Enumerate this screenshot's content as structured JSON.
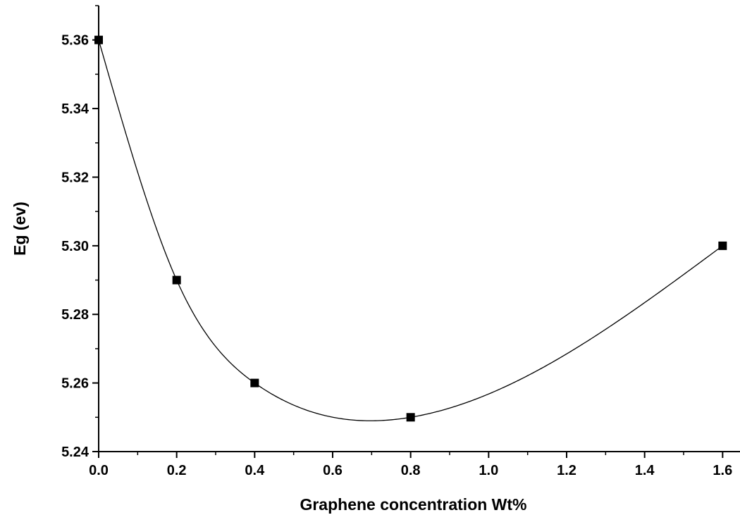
{
  "chart_data": {
    "type": "scatter",
    "title": "",
    "xlabel": "Graphene concentration Wt%",
    "ylabel": "Eg (ev)",
    "xlim": [
      0.0,
      1.65
    ],
    "ylim": [
      5.24,
      5.37
    ],
    "x_ticks": [
      "0.0",
      "0.2",
      "0.4",
      "0.6",
      "0.8",
      "1.0",
      "1.2",
      "1.4",
      "1.6"
    ],
    "y_ticks": [
      "5.24",
      "5.26",
      "5.28",
      "5.30",
      "5.32",
      "5.34",
      "5.36"
    ],
    "grid": false,
    "legend": "none",
    "series": [
      {
        "marker": "square",
        "line": "smooth-spline",
        "color": "#000000",
        "points": [
          {
            "x": 0.0,
            "y": 5.36
          },
          {
            "x": 0.2,
            "y": 5.29
          },
          {
            "x": 0.4,
            "y": 5.26
          },
          {
            "x": 0.8,
            "y": 5.25
          },
          {
            "x": 1.6,
            "y": 5.3
          }
        ]
      }
    ]
  }
}
